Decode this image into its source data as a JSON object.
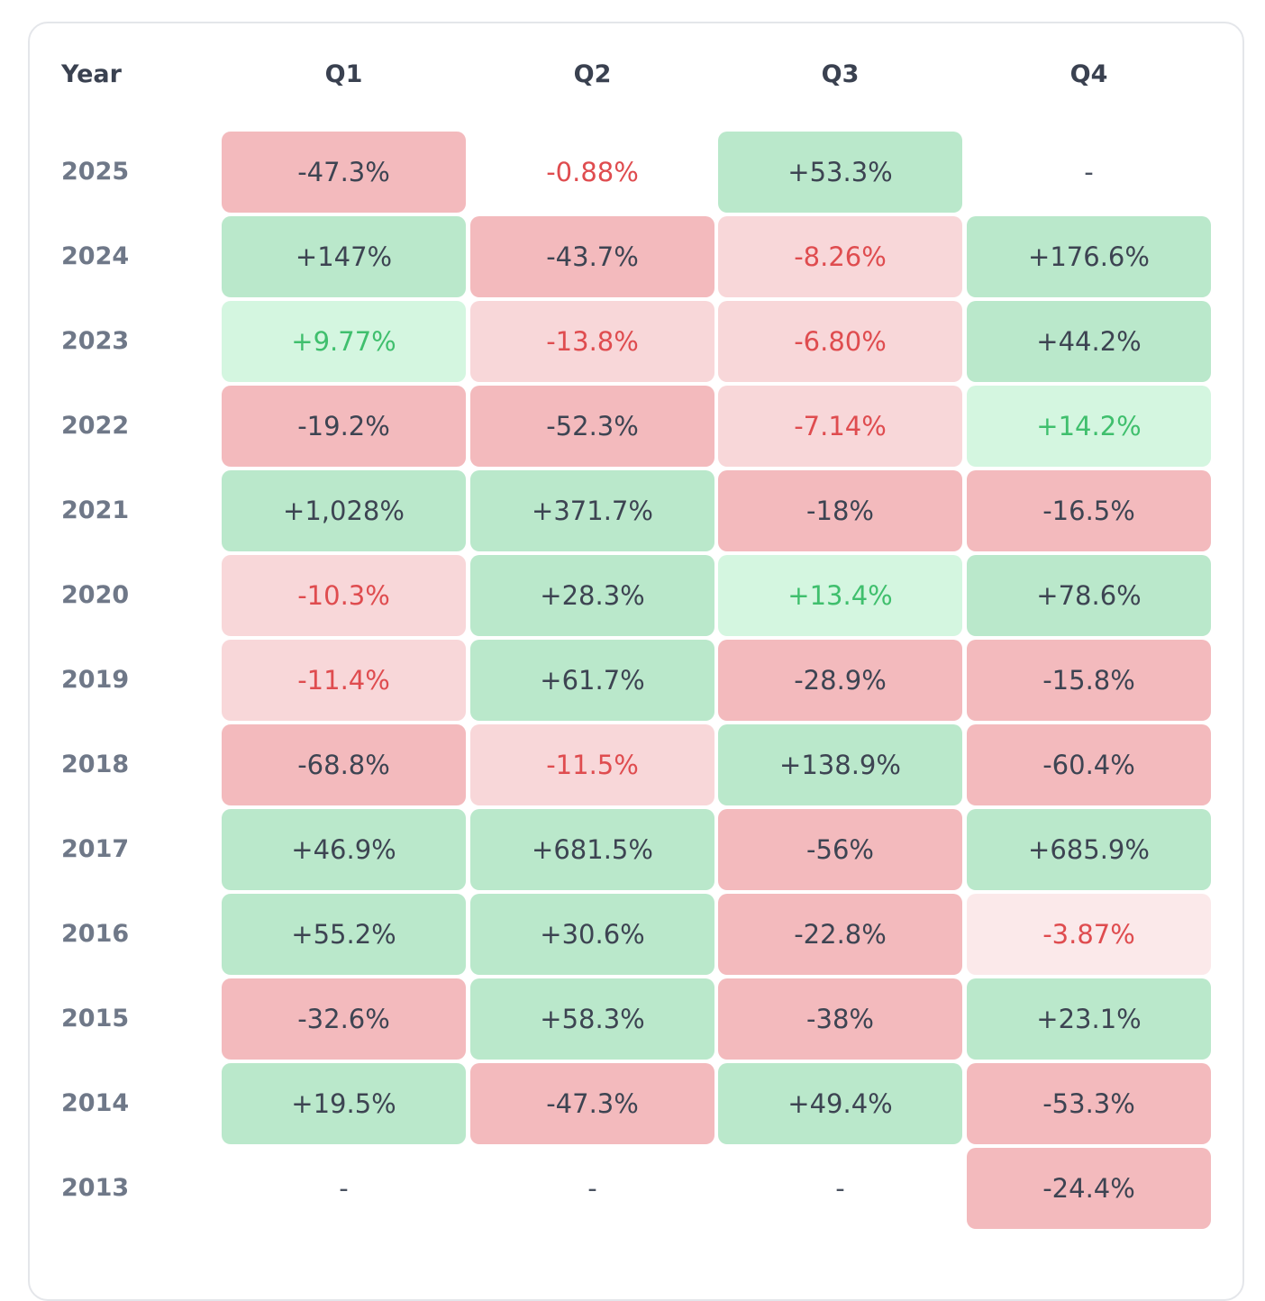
{
  "table": {
    "headers": [
      "Year",
      "Q1",
      "Q2",
      "Q3",
      "Q4"
    ],
    "rows": [
      {
        "year": "2025",
        "cells": [
          {
            "text": "-47.3%",
            "style": "neg-strong"
          },
          {
            "text": "-0.88%",
            "style": "neg-none"
          },
          {
            "text": "+53.3%",
            "style": "pos-strong"
          },
          {
            "text": "-",
            "style": "empty"
          }
        ]
      },
      {
        "year": "2024",
        "cells": [
          {
            "text": "+147%",
            "style": "pos-strong"
          },
          {
            "text": "-43.7%",
            "style": "neg-strong"
          },
          {
            "text": "-8.26%",
            "style": "neg-mid"
          },
          {
            "text": "+176.6%",
            "style": "pos-strong"
          }
        ]
      },
      {
        "year": "2023",
        "cells": [
          {
            "text": "+9.77%",
            "style": "pos-light"
          },
          {
            "text": "-13.8%",
            "style": "neg-mid"
          },
          {
            "text": "-6.80%",
            "style": "neg-mid"
          },
          {
            "text": "+44.2%",
            "style": "pos-strong"
          }
        ]
      },
      {
        "year": "2022",
        "cells": [
          {
            "text": "-19.2%",
            "style": "neg-strong"
          },
          {
            "text": "-52.3%",
            "style": "neg-strong"
          },
          {
            "text": "-7.14%",
            "style": "neg-mid"
          },
          {
            "text": "+14.2%",
            "style": "pos-light"
          }
        ]
      },
      {
        "year": "2021",
        "cells": [
          {
            "text": "+1,028%",
            "style": "pos-strong"
          },
          {
            "text": "+371.7%",
            "style": "pos-strong"
          },
          {
            "text": "-18%",
            "style": "neg-strong"
          },
          {
            "text": "-16.5%",
            "style": "neg-strong"
          }
        ]
      },
      {
        "year": "2020",
        "cells": [
          {
            "text": "-10.3%",
            "style": "neg-mid"
          },
          {
            "text": "+28.3%",
            "style": "pos-strong"
          },
          {
            "text": "+13.4%",
            "style": "pos-light"
          },
          {
            "text": "+78.6%",
            "style": "pos-strong"
          }
        ]
      },
      {
        "year": "2019",
        "cells": [
          {
            "text": "-11.4%",
            "style": "neg-mid"
          },
          {
            "text": "+61.7%",
            "style": "pos-strong"
          },
          {
            "text": "-28.9%",
            "style": "neg-strong"
          },
          {
            "text": "-15.8%",
            "style": "neg-strong"
          }
        ]
      },
      {
        "year": "2018",
        "cells": [
          {
            "text": "-68.8%",
            "style": "neg-strong"
          },
          {
            "text": "-11.5%",
            "style": "neg-mid"
          },
          {
            "text": "+138.9%",
            "style": "pos-strong"
          },
          {
            "text": "-60.4%",
            "style": "neg-strong"
          }
        ]
      },
      {
        "year": "2017",
        "cells": [
          {
            "text": "+46.9%",
            "style": "pos-strong"
          },
          {
            "text": "+681.5%",
            "style": "pos-strong"
          },
          {
            "text": "-56%",
            "style": "neg-strong"
          },
          {
            "text": "+685.9%",
            "style": "pos-strong"
          }
        ]
      },
      {
        "year": "2016",
        "cells": [
          {
            "text": "+55.2%",
            "style": "pos-strong"
          },
          {
            "text": "+30.6%",
            "style": "pos-strong"
          },
          {
            "text": "-22.8%",
            "style": "neg-strong"
          },
          {
            "text": "-3.87%",
            "style": "neg-light"
          }
        ]
      },
      {
        "year": "2015",
        "cells": [
          {
            "text": "-32.6%",
            "style": "neg-strong"
          },
          {
            "text": "+58.3%",
            "style": "pos-strong"
          },
          {
            "text": "-38%",
            "style": "neg-strong"
          },
          {
            "text": "+23.1%",
            "style": "pos-strong"
          }
        ]
      },
      {
        "year": "2014",
        "cells": [
          {
            "text": "+19.5%",
            "style": "pos-strong"
          },
          {
            "text": "-47.3%",
            "style": "neg-strong"
          },
          {
            "text": "+49.4%",
            "style": "pos-strong"
          },
          {
            "text": "-53.3%",
            "style": "neg-strong"
          }
        ]
      },
      {
        "year": "2013",
        "cells": [
          {
            "text": "-",
            "style": "empty"
          },
          {
            "text": "-",
            "style": "empty"
          },
          {
            "text": "-",
            "style": "empty"
          },
          {
            "text": "-24.4%",
            "style": "neg-strong"
          }
        ]
      }
    ]
  },
  "colors": {
    "negative_strong_bg": "#f3babd",
    "negative_mid_bg": "#f8d7d9",
    "negative_light_bg": "#fbe9ea",
    "negative_text": "#df4c4f",
    "positive_strong_bg": "#bae8cb",
    "positive_light_bg": "#d4f6e0",
    "positive_text": "#3fbf6d",
    "default_text": "#3d4452"
  }
}
